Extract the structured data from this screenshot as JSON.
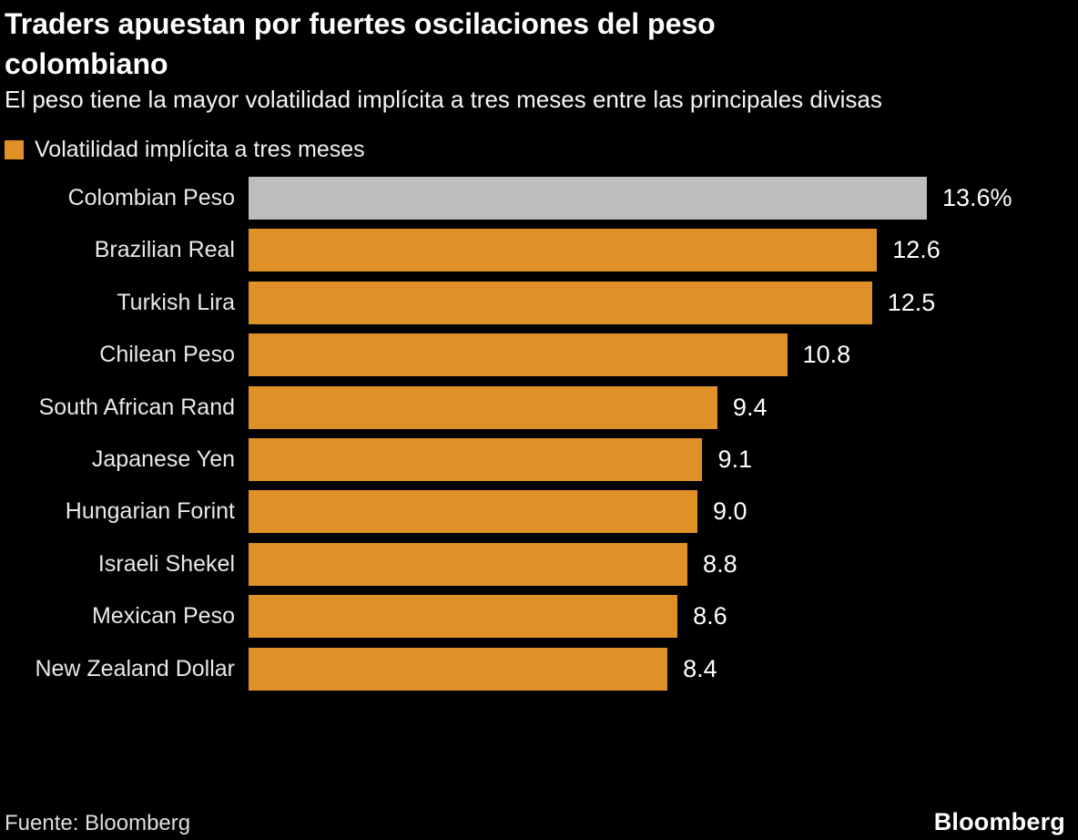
{
  "header": {
    "title": "Traders apuestan por fuertes oscilaciones del peso colombiano",
    "subtitle": "El peso tiene la mayor volatilidad implícita a tres meses entre las principales divisas"
  },
  "legend": {
    "label": "Volatilidad implícita a tres meses",
    "swatch_color": "#DF9027"
  },
  "chart_data": {
    "type": "bar",
    "orientation": "horizontal",
    "title": "Traders apuestan por fuertes oscilaciones del peso colombiano",
    "series_name": "Volatilidad implícita a tres meses",
    "categories": [
      "Colombian Peso",
      "Brazilian Real",
      "Turkish Lira",
      "Chilean Peso",
      "South African Rand",
      "Japanese Yen",
      "Hungarian Forint",
      "Israeli Shekel",
      "Mexican Peso",
      "New Zealand Dollar"
    ],
    "values": [
      13.6,
      12.6,
      12.5,
      10.8,
      9.4,
      9.1,
      9.0,
      8.8,
      8.6,
      8.4
    ],
    "value_labels": [
      "13.6%",
      "12.6",
      "12.5",
      "10.8",
      "9.4",
      "9.1",
      "9.0",
      "8.8",
      "8.6",
      "8.4"
    ],
    "xlim": [
      0,
      13.6
    ],
    "highlight_index": 0,
    "bar_color": "#DF9027",
    "highlight_color": "#BDBDBD",
    "grid": false,
    "legend_position": "top-left"
  },
  "footer": {
    "source": "Fuente: Bloomberg",
    "brand": "Bloomberg"
  },
  "colors": {
    "background": "#000000",
    "title_text": "#FFFFFF",
    "label_text": "#E8E8E8",
    "value_text": "#FFFFFF"
  }
}
